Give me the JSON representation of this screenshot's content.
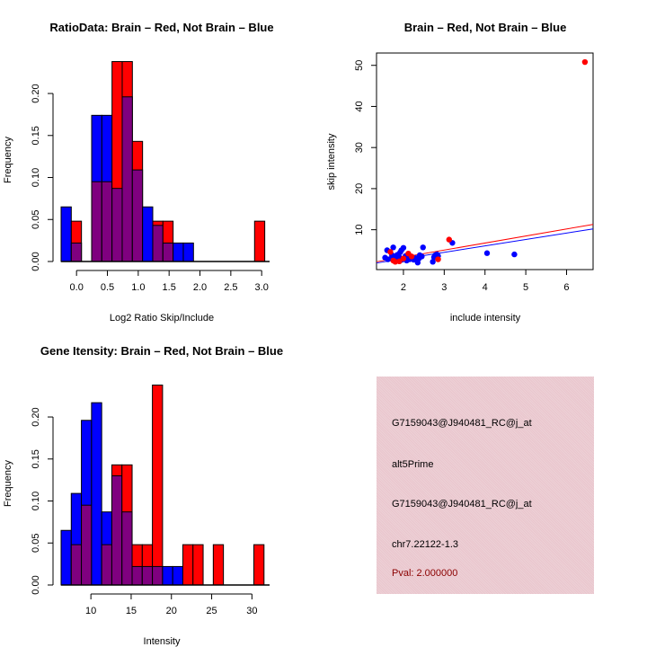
{
  "colors": {
    "brain": "#ff0000",
    "not_brain": "#0000ff",
    "overlap": "#7f007f",
    "panel_bg": "#e9c6cd",
    "pval_text": "#8b0000"
  },
  "chart_data": [
    {
      "type": "bar",
      "subtype": "overlaid-histogram",
      "title": "RatioData: Brain – Red, Not Brain – Blue",
      "xlabel": "Log2 Ratio Skip/Include",
      "ylabel": "Frequency",
      "xlim": [
        -0.25,
        3.07
      ],
      "ylim": [
        0,
        0.25
      ],
      "bin_start": -0.25,
      "bin_width": 0.165,
      "xticks": [
        "0.0",
        "0.5",
        "1.0",
        "1.5",
        "2.0",
        "2.5",
        "3.0"
      ],
      "xtick_values": [
        0,
        0.5,
        1.0,
        1.5,
        2.0,
        2.5,
        3.0
      ],
      "yticks": [
        "0.00",
        "0.05",
        "0.10",
        "0.15",
        "0.20"
      ],
      "ytick_values": [
        0,
        0.05,
        0.1,
        0.15,
        0.2
      ],
      "series": [
        {
          "name": "Not Brain",
          "color": "blue",
          "values": [
            0.065,
            0.022,
            0,
            0.174,
            0.174,
            0.087,
            0.196,
            0.109,
            0.065,
            0.043,
            0.022,
            0.022,
            0.022,
            0,
            0,
            0,
            0,
            0,
            0,
            0
          ]
        },
        {
          "name": "Brain",
          "color": "red",
          "values": [
            0,
            0.048,
            0,
            0.095,
            0.095,
            0.238,
            0.238,
            0.143,
            0,
            0.048,
            0.048,
            0,
            0,
            0,
            0,
            0,
            0,
            0,
            0,
            0.048
          ]
        }
      ]
    },
    {
      "type": "scatter",
      "title": "Brain – Red, Not Brain – Blue",
      "xlabel": "include intensity",
      "ylabel": "skip intensity",
      "xlim": [
        1.34,
        6.65
      ],
      "ylim": [
        0.3,
        53
      ],
      "xticks": [
        "2",
        "3",
        "4",
        "5",
        "6"
      ],
      "xtick_values": [
        2,
        3,
        4,
        5,
        6
      ],
      "yticks": [
        "10",
        "20",
        "30",
        "40",
        "50"
      ],
      "ytick_values": [
        10,
        20,
        30,
        40,
        50
      ],
      "series": [
        {
          "name": "Not Brain",
          "color": "blue",
          "points": [
            [
              1.55,
              3.2
            ],
            [
              1.6,
              5.0
            ],
            [
              1.62,
              2.8
            ],
            [
              1.7,
              3.0
            ],
            [
              1.72,
              3.8
            ],
            [
              1.75,
              5.7
            ],
            [
              1.78,
              2.6
            ],
            [
              1.8,
              3.5
            ],
            [
              1.82,
              2.4
            ],
            [
              1.85,
              3.9
            ],
            [
              1.88,
              2.9
            ],
            [
              1.9,
              3.3
            ],
            [
              1.92,
              4.5
            ],
            [
              1.95,
              5.0
            ],
            [
              1.97,
              2.7
            ],
            [
              2.0,
              5.6
            ],
            [
              2.02,
              3.0
            ],
            [
              2.05,
              3.6
            ],
            [
              2.08,
              2.5
            ],
            [
              2.1,
              3.2
            ],
            [
              2.12,
              4.0
            ],
            [
              2.15,
              2.8
            ],
            [
              2.18,
              3.4
            ],
            [
              2.2,
              3.0
            ],
            [
              2.25,
              2.7
            ],
            [
              2.3,
              3.1
            ],
            [
              2.35,
              2.0
            ],
            [
              2.38,
              3.0
            ],
            [
              2.4,
              3.8
            ],
            [
              2.45,
              3.5
            ],
            [
              2.48,
              5.7
            ],
            [
              2.72,
              2.2
            ],
            [
              2.75,
              3.3
            ],
            [
              2.78,
              3.8
            ],
            [
              2.82,
              4.0
            ],
            [
              2.85,
              3.6
            ],
            [
              3.2,
              6.8
            ],
            [
              4.05,
              4.3
            ],
            [
              4.72,
              4.0
            ]
          ]
        },
        {
          "name": "Brain",
          "color": "red",
          "points": [
            [
              1.68,
              4.6
            ],
            [
              1.75,
              2.5
            ],
            [
              1.8,
              2.2
            ],
            [
              1.9,
              2.3
            ],
            [
              2.0,
              3.0
            ],
            [
              2.12,
              4.2
            ],
            [
              2.2,
              3.5
            ],
            [
              2.85,
              2.8
            ],
            [
              3.12,
              7.6
            ],
            [
              6.45,
              50.8
            ]
          ]
        }
      ],
      "fit_lines": [
        {
          "name": "Brain fit",
          "color": "red",
          "from": [
            1.34,
            2.2
          ],
          "to": [
            6.65,
            11.3
          ]
        },
        {
          "name": "Not Brain fit",
          "color": "blue",
          "from": [
            1.34,
            1.9
          ],
          "to": [
            6.65,
            10.2
          ]
        }
      ]
    },
    {
      "type": "bar",
      "subtype": "overlaid-histogram",
      "title": "Gene Itensity: Brain – Red, Not Brain – Blue",
      "xlabel": "Intensity",
      "ylabel": "Frequency",
      "xlim": [
        6.3,
        31.3
      ],
      "ylim": [
        0,
        0.25
      ],
      "bin_start": 6.3,
      "bin_width": 1.26,
      "xticks": [
        "10",
        "15",
        "20",
        "25",
        "30"
      ],
      "xtick_values": [
        10,
        15,
        20,
        25,
        30
      ],
      "yticks": [
        "0.00",
        "0.05",
        "0.10",
        "0.15",
        "0.20"
      ],
      "ytick_values": [
        0,
        0.05,
        0.1,
        0.15,
        0.2
      ],
      "series": [
        {
          "name": "Not Brain",
          "color": "blue",
          "values": [
            0.065,
            0.109,
            0.196,
            0.217,
            0.087,
            0.13,
            0.087,
            0.022,
            0.022,
            0.022,
            0.022,
            0.022,
            0,
            0,
            0,
            0,
            0,
            0,
            0,
            0
          ]
        },
        {
          "name": "Brain",
          "color": "red",
          "values": [
            0,
            0.048,
            0.095,
            0,
            0.048,
            0.143,
            0.143,
            0.048,
            0.048,
            0.238,
            0,
            0,
            0.048,
            0.048,
            0,
            0.048,
            0,
            0,
            0,
            0.048
          ]
        }
      ]
    }
  ],
  "info_panel": {
    "lines": [
      "G7159043@J940481_RC@j_at",
      "alt5Prime",
      "G7159043@J940481_RC@j_at",
      "chr7.22122-1.3"
    ],
    "pval": "Pval: 2.000000"
  }
}
